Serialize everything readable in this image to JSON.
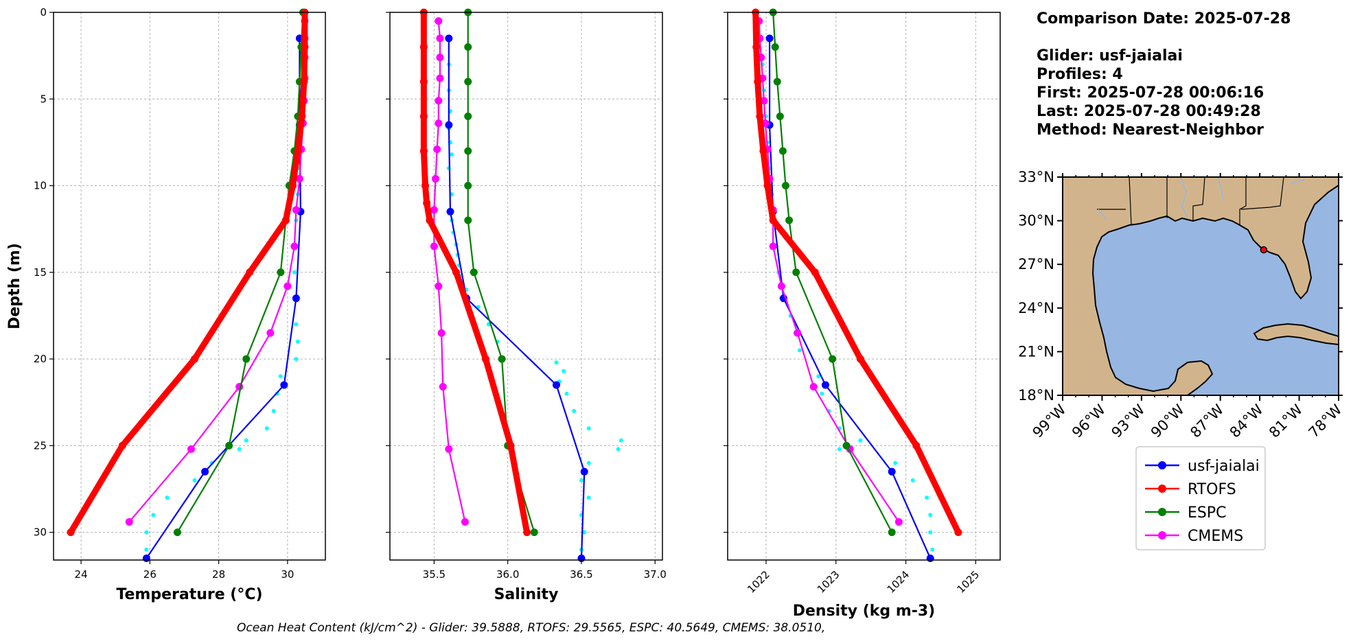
{
  "info": {
    "comparison_date": "Comparison Date: 2025-07-28",
    "glider": "Glider: usf-jaialai",
    "profiles": "Profiles: 4",
    "first": "First: 2025-07-28 00:06:16",
    "last": "Last: 2025-07-28 00:49:28",
    "method": "Method: Nearest-Neighbor"
  },
  "footer": "Ocean Heat Content (kJ/cm^2) - Glider: 39.5888,  RTOFS: 29.5565,  ESPC: 40.5649,  CMEMS: 38.0510,",
  "colors": {
    "glider": "#0000ff",
    "rtofs": "#ff0000",
    "espc": "#008000",
    "cmems": "#ff00ff",
    "glider_raw": "#00ffff",
    "land": "#d2b48c",
    "ocean": "#97b6e1"
  },
  "legend": {
    "location": "below map",
    "entries": [
      {
        "label": "usf-jaialai",
        "color": "#0000ff"
      },
      {
        "label": "RTOFS",
        "color": "#ff0000"
      },
      {
        "label": "ESPC",
        "color": "#008000"
      },
      {
        "label": "CMEMS",
        "color": "#ff00ff"
      }
    ]
  },
  "map": {
    "lon_range": [
      -99,
      -78
    ],
    "lat_range": [
      18,
      33
    ],
    "lon_ticks": [
      "99°W",
      "96°W",
      "93°W",
      "90°W",
      "87°W",
      "84°W",
      "81°W",
      "78°W"
    ],
    "lat_ticks": [
      "33°N",
      "30°N",
      "27°N",
      "24°N",
      "21°N",
      "18°N"
    ],
    "glider_location": {
      "lon": -83.7,
      "lat": 28.0
    }
  },
  "chart_data": [
    {
      "type": "line",
      "xlabel": "Temperature (°C)",
      "ylabel": "Depth (m)",
      "xlim": [
        23.2,
        31.1
      ],
      "ylim": [
        31.6,
        0
      ],
      "xticks": [
        24,
        26,
        28,
        30
      ],
      "yticks": [
        0,
        5,
        10,
        15,
        20,
        25,
        30
      ],
      "grid": true,
      "series": [
        {
          "name": "usf-jaialai",
          "key": "glider",
          "depth": [
            1.5,
            6.5,
            11.5,
            16.5,
            21.5,
            26.5,
            31.5
          ],
          "values": [
            30.35,
            30.35,
            30.38,
            30.25,
            29.9,
            27.6,
            25.9
          ]
        },
        {
          "name": "RTOFS",
          "key": "rtofs",
          "depth": [
            0,
            2,
            4,
            6,
            8,
            10,
            12,
            15,
            20,
            25,
            30
          ],
          "values": [
            30.5,
            30.5,
            30.48,
            30.42,
            30.3,
            30.15,
            29.95,
            28.9,
            27.3,
            25.2,
            23.7
          ]
        },
        {
          "name": "ESPC",
          "key": "espc",
          "depth": [
            0,
            2,
            4,
            6,
            8,
            10,
            12,
            15,
            20,
            25,
            30
          ],
          "values": [
            30.45,
            30.4,
            30.35,
            30.3,
            30.2,
            30.05,
            29.95,
            29.8,
            28.8,
            28.3,
            26.8
          ]
        },
        {
          "name": "CMEMS",
          "key": "cmems",
          "depth": [
            0.5,
            1.5,
            2.6,
            3.8,
            5.1,
            6.4,
            7.9,
            9.6,
            11.4,
            13.5,
            15.8,
            18.5,
            21.6,
            25.2,
            29.4
          ],
          "values": [
            30.5,
            30.5,
            30.5,
            30.5,
            30.48,
            30.45,
            30.4,
            30.35,
            30.25,
            30.2,
            30.0,
            29.5,
            28.6,
            27.2,
            25.4
          ]
        },
        {
          "name": "usf-jaialai raw",
          "key": "glider_raw",
          "depth": [
            1.5,
            3,
            4.5,
            6,
            7.5,
            9,
            10.5,
            12,
            13.5,
            15,
            16.5,
            18,
            19,
            20,
            21,
            22,
            23,
            24,
            24.7,
            25.2,
            26,
            27,
            28,
            29,
            30,
            31
          ],
          "values": [
            30.4,
            30.4,
            30.4,
            30.38,
            30.35,
            30.32,
            30.3,
            30.25,
            30.2,
            30.2,
            30.2,
            30.25,
            30.3,
            30.25,
            29.8,
            29.7,
            29.6,
            29.4,
            28.8,
            28.6,
            27.8,
            27.3,
            26.5,
            26.1,
            25.9,
            25.9
          ]
        }
      ]
    },
    {
      "type": "line",
      "xlabel": "Salinity",
      "ylabel": "",
      "xlim": [
        35.2,
        37.05
      ],
      "ylim": [
        31.6,
        0
      ],
      "xticks": [
        35.5,
        36.0,
        36.5,
        37.0
      ],
      "xtick_labels": [
        "35.5",
        "36.0",
        "36.5",
        "37.0"
      ],
      "yticks": [
        0,
        5,
        10,
        15,
        20,
        25,
        30
      ],
      "grid": true,
      "series": [
        {
          "name": "usf-jaialai",
          "key": "glider",
          "depth": [
            1.5,
            6.5,
            11.5,
            16.5,
            21.5,
            26.5,
            31.5
          ],
          "values": [
            35.6,
            35.6,
            35.61,
            35.72,
            36.33,
            36.52,
            36.5
          ]
        },
        {
          "name": "RTOFS",
          "key": "rtofs",
          "depth": [
            0,
            2,
            4,
            6,
            8,
            10,
            11,
            12,
            15,
            20,
            25,
            30
          ],
          "values": [
            35.43,
            35.43,
            35.43,
            35.43,
            35.43,
            35.44,
            35.45,
            35.47,
            35.65,
            35.85,
            36.02,
            36.13
          ]
        },
        {
          "name": "ESPC",
          "key": "espc",
          "depth": [
            0,
            2,
            4,
            6,
            8,
            10,
            12,
            15,
            20,
            25,
            30
          ],
          "values": [
            35.73,
            35.73,
            35.73,
            35.73,
            35.73,
            35.73,
            35.73,
            35.77,
            35.96,
            36.0,
            36.18
          ]
        },
        {
          "name": "CMEMS",
          "key": "cmems",
          "depth": [
            0.5,
            1.5,
            2.6,
            3.8,
            5.1,
            6.4,
            7.9,
            9.6,
            11.4,
            13.5,
            15.8,
            18.5,
            21.6,
            25.2,
            29.4
          ],
          "values": [
            35.53,
            35.54,
            35.54,
            35.54,
            35.53,
            35.53,
            35.52,
            35.51,
            35.5,
            35.5,
            35.53,
            35.55,
            35.56,
            35.6,
            35.71
          ]
        },
        {
          "name": "usf-jaialai raw",
          "key": "glider_raw",
          "depth": [
            3,
            4.5,
            5.7,
            6.7,
            7.5,
            8.2,
            9,
            10.5,
            12,
            12.7,
            13.4,
            14,
            14.6,
            15.2,
            16,
            17,
            18,
            19,
            20.2,
            20.7,
            21.3,
            22,
            23,
            24,
            24.7,
            25.2,
            26,
            27,
            28,
            29,
            30,
            31
          ],
          "values": [
            35.6,
            35.6,
            35.61,
            35.6,
            35.61,
            35.62,
            35.6,
            35.62,
            35.62,
            35.63,
            35.65,
            35.66,
            35.67,
            35.68,
            35.72,
            35.8,
            35.87,
            35.93,
            36.33,
            36.38,
            36.35,
            36.4,
            36.45,
            36.55,
            36.77,
            36.75,
            36.55,
            36.5,
            36.55,
            36.5,
            36.52,
            36.5
          ]
        }
      ]
    },
    {
      "type": "line",
      "xlabel": "Density (kg m-3)",
      "ylabel": "",
      "xlim": [
        1021.45,
        1025.35
      ],
      "ylim": [
        31.6,
        0
      ],
      "xticks": [
        1022,
        1023,
        1024,
        1025
      ],
      "xtick_labels": [
        "1022",
        "1023",
        "1024",
        "1025"
      ],
      "yticks": [
        0,
        5,
        10,
        15,
        20,
        25,
        30
      ],
      "grid": true,
      "series": [
        {
          "name": "usf-jaialai",
          "key": "glider",
          "depth": [
            1.5,
            6.5,
            11.5,
            16.5,
            21.5,
            26.5,
            31.5
          ],
          "values": [
            1022.05,
            1022.05,
            1022.1,
            1022.25,
            1022.85,
            1023.8,
            1024.35
          ]
        },
        {
          "name": "RTOFS",
          "key": "rtofs",
          "depth": [
            0,
            2,
            4,
            6,
            8,
            10,
            12,
            15,
            20,
            25,
            30
          ],
          "values": [
            1021.85,
            1021.86,
            1021.88,
            1021.91,
            1021.96,
            1022.02,
            1022.1,
            1022.7,
            1023.35,
            1024.15,
            1024.75
          ]
        },
        {
          "name": "ESPC",
          "key": "espc",
          "depth": [
            0,
            2,
            4,
            6,
            8,
            10,
            12,
            15,
            20,
            25,
            30
          ],
          "values": [
            1022.1,
            1022.13,
            1022.16,
            1022.2,
            1022.24,
            1022.28,
            1022.33,
            1022.43,
            1022.95,
            1023.15,
            1023.8
          ]
        },
        {
          "name": "CMEMS",
          "key": "cmems",
          "depth": [
            0.5,
            1.5,
            2.6,
            3.8,
            5.1,
            6.4,
            7.9,
            9.6,
            11.4,
            13.5,
            15.8,
            18.5,
            21.6,
            25.2,
            29.4
          ],
          "values": [
            1021.9,
            1021.91,
            1021.93,
            1021.95,
            1021.97,
            1021.99,
            1022.02,
            1022.05,
            1022.1,
            1022.1,
            1022.22,
            1022.45,
            1022.68,
            1023.2,
            1023.9
          ]
        },
        {
          "name": "usf-jaialai raw",
          "key": "glider_raw",
          "depth": [
            3,
            4.5,
            6,
            7.5,
            9,
            10.5,
            12,
            13.5,
            15,
            16.5,
            17.5,
            18.5,
            19.5,
            21,
            22,
            23,
            24,
            24.7,
            25.2,
            26,
            27,
            28,
            29,
            30,
            31
          ],
          "values": [
            1021.95,
            1021.97,
            1022.0,
            1022.02,
            1022.05,
            1022.08,
            1022.12,
            1022.15,
            1022.18,
            1022.22,
            1022.35,
            1022.42,
            1022.48,
            1022.75,
            1022.8,
            1022.9,
            1023.05,
            1023.35,
            1023.05,
            1023.85,
            1024.1,
            1024.3,
            1024.35,
            1024.35,
            1024.38
          ]
        }
      ]
    }
  ]
}
